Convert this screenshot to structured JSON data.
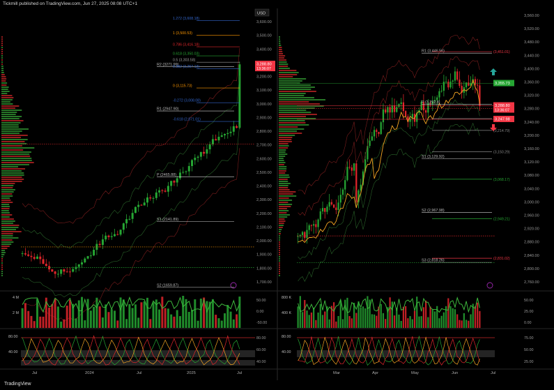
{
  "header": {
    "published": "Tickmill published on TradingView.com, Jun 27, 2025 08:08 UTC+1"
  },
  "footer": {
    "brand": "TradingView"
  },
  "colors": {
    "bg": "#000000",
    "bull": "#26a633",
    "bear": "#e0262b",
    "price_tag": "#f23645",
    "pivot": "#d0d0d0",
    "fib_blue": "#3366cc",
    "fib_orange": "#ff9800",
    "ema_orange": "#f5a623",
    "profile_green": "#2e8b2e",
    "profile_red": "#b22222",
    "arrow_teal": "#26a69a",
    "arrow_red": "#f23645"
  },
  "chart_data": [
    {
      "type": "candlestick",
      "title": "",
      "timeframe_note": "weekly",
      "price_axis": {
        "unit_label": "USD",
        "ticks": [
          "3,600.00",
          "3,500.00",
          "3,400.00",
          "3,300.00",
          "3,200.00",
          "3,100.00",
          "3,000.00",
          "2,900.00",
          "2,800.00",
          "2,700.00",
          "2,600.00",
          "2,500.00",
          "2,400.00",
          "2,300.00",
          "2,200.00",
          "2,100.00",
          "2,000.00",
          "1,900.00",
          "1,800.00",
          "1,700.00"
        ],
        "ylim": [
          1650,
          3640
        ]
      },
      "time_axis": {
        "ticks": [
          "Jul",
          "2024",
          "Jul",
          "2025",
          "Jul"
        ]
      },
      "last_price": {
        "value": "3,288.80",
        "countdown": "13:36:07"
      },
      "pivots": [
        {
          "label": "R2 (3271.99)",
          "value": 3271.99
        },
        {
          "label": "R1 (2947.90)",
          "value": 2947.9
        },
        {
          "label": "P (2465.88)",
          "value": 2465.88
        },
        {
          "label": "S1 (2141.89)",
          "value": 2141.89
        },
        {
          "label": "S2 (1659.87)",
          "value": 1659.87
        }
      ],
      "fib_levels": [
        {
          "label": "1.272 (3,608.18)",
          "value": 3608.18,
          "color": "#3366cc"
        },
        {
          "label": "1 (3,500.53)",
          "value": 3500.53,
          "color": "#ff9800"
        },
        {
          "label": "0.786 (3,416.18)",
          "value": 3416.18,
          "color": "#e0262b"
        },
        {
          "label": "0.618 (3,350.03)",
          "value": 3350.03,
          "color": "#26a633"
        },
        {
          "label": "0.5 (3,303.58)",
          "value": 3303.58,
          "color": "#9e9e9e"
        },
        {
          "label": "0.382 (3,257.13)",
          "value": 3257.13,
          "color": "#3366cc"
        },
        {
          "label": "0 (3,115.73)",
          "value": 3115.73,
          "color": "#ff9800"
        },
        {
          "label": "-0.272 (3,008.08)",
          "value": 3008.08,
          "color": "#3366cc"
        },
        {
          "label": "-0.618 (2,871.01)",
          "value": 2871.01,
          "color": "#3366cc"
        }
      ],
      "volume_axis": {
        "left_ticks": [
          "4 M",
          "2 M"
        ],
        "right_ticks": [
          "50.00",
          "0.00",
          "-50.00"
        ]
      },
      "oscillator_axis": {
        "left_ticks": [
          "80.00",
          "40.00"
        ],
        "right_ticks": [
          "80.00",
          "60.00",
          "40.00"
        ]
      }
    },
    {
      "type": "candlestick",
      "title": "",
      "timeframe_note": "daily",
      "price_axis": {
        "ticks": [
          "3,560.00",
          "3,520.00",
          "3,480.00",
          "3,440.00",
          "3,400.00",
          "3,360.00",
          "3,320.00",
          "3,280.00",
          "3,240.00",
          "3,200.00",
          "3,160.00",
          "3,120.00",
          "3,080.00",
          "3,040.00",
          "3,000.00",
          "2,960.00",
          "2,920.00",
          "2,880.00",
          "2,840.00",
          "2,800.00",
          "2,760.00"
        ],
        "ylim": [
          2745,
          3582
        ]
      },
      "time_axis": {
        "ticks": [
          "Mar",
          "Apr",
          "May",
          "Jun",
          "Jul"
        ]
      },
      "price_tags": [
        {
          "value": "3,355.73",
          "color": "#26a633"
        },
        {
          "value": "3,288.80",
          "color": "#f23645",
          "countdown": "13:36:07"
        },
        {
          "value": "3,247.98",
          "color": "#f23645"
        }
      ],
      "pivots": [
        {
          "label": "R1 (3,446.56)",
          "value": 3446.56
        },
        {
          "label": "P (3,292.8)",
          "value": 3292.8
        },
        {
          "label": "S1 (3,129.92)",
          "value": 3129.92
        },
        {
          "label": "S2 (2,967.98)",
          "value": 2967.98
        },
        {
          "label": "S3 (2,818.26)",
          "value": 2818.26
        }
      ],
      "target_levels": [
        {
          "label": "(3,451.01)",
          "value": 3451.01,
          "color": "#f23645"
        },
        {
          "label": "(3,250.04)",
          "value": 3250.04,
          "color": "#888888"
        },
        {
          "label": "(3,214.79)",
          "value": 3214.79,
          "color": "#888888"
        },
        {
          "label": "(3,150.29)",
          "value": 3150.29,
          "color": "#888888"
        },
        {
          "label": "(3,068.17)",
          "value": 3068.17,
          "color": "#26a633"
        },
        {
          "label": "(2,949.21)",
          "value": 2949.21,
          "color": "#26a633"
        },
        {
          "label": "(2,831.02)",
          "value": 2831.02,
          "color": "#f23645"
        }
      ],
      "volume_axis": {
        "left_ticks": [
          "800 K",
          "400 K"
        ],
        "right_ticks": [
          "50.00",
          "25.00",
          "0.00"
        ]
      },
      "oscillator_axis": {
        "left_ticks": [
          "80.00",
          "40.00"
        ],
        "right_ticks": [
          "75.00",
          "50.00",
          "25.00"
        ]
      }
    }
  ]
}
